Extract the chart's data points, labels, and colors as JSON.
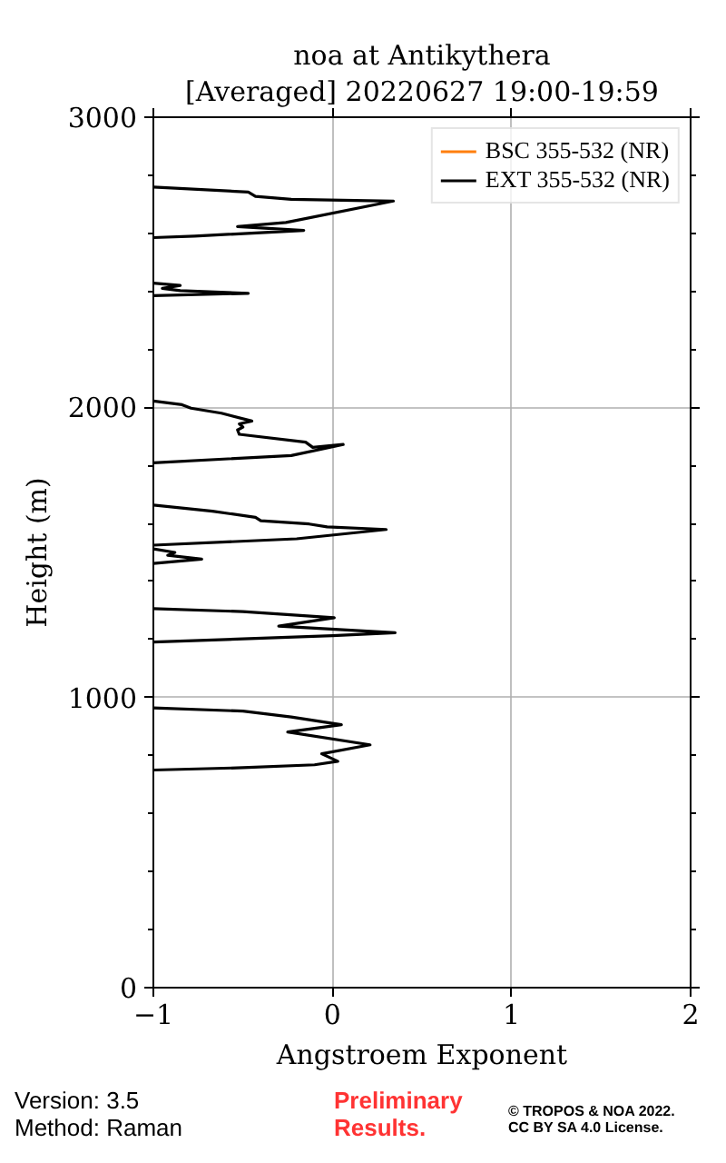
{
  "chart_data": {
    "type": "line",
    "title": "noa at Antikythera",
    "subtitle": "[Averaged] 20220627 19:00-19:59",
    "xlabel": "Angstroem Exponent",
    "ylabel": "Height (m)",
    "xlim": [
      -1,
      2
    ],
    "ylim": [
      0,
      3000
    ],
    "xticks": [
      {
        "value": -1,
        "label": "−1"
      },
      0,
      1,
      2
    ],
    "yticks": [
      0,
      {
        "value": 200,
        "label": null
      },
      {
        "value": 400,
        "label": null
      },
      {
        "value": 600,
        "label": null
      },
      {
        "value": 800,
        "label": null
      },
      1000,
      {
        "value": 1200,
        "label": null
      },
      {
        "value": 1400,
        "label": null
      },
      {
        "value": 1600,
        "label": null
      },
      {
        "value": 1800,
        "label": null
      },
      2000,
      {
        "value": 2200,
        "label": null
      },
      {
        "value": 2400,
        "label": null
      },
      {
        "value": 2600,
        "label": null
      },
      {
        "value": 2800,
        "label": null
      },
      3000
    ],
    "grid": true,
    "legend": "top right",
    "series": [
      {
        "name": "BSC 355-532 (NR)",
        "color": "#ff7f0e"
      },
      {
        "name": "EXT 355-532 (NR)",
        "color": "#000000",
        "x": [
          -1,
          -0.5,
          -0.1,
          0.03,
          -0.06,
          0.21,
          -0.25,
          0.05,
          -0.23,
          -0.5,
          -1,
          null,
          -1,
          -0.5,
          0.0,
          0.35,
          -0.3,
          0.01,
          -0.5,
          -1,
          null,
          -1,
          -0.73,
          -0.92,
          -0.88,
          -1,
          null,
          -1,
          -0.2,
          0.3,
          -0.03,
          -0.13,
          -0.4,
          -0.43,
          -0.67,
          -1,
          null,
          -1,
          -0.23,
          0.06,
          -0.11,
          -0.15,
          -0.52,
          -0.53,
          -0.5,
          -0.52,
          -0.45,
          -0.62,
          -0.79,
          -0.84,
          -1,
          null,
          -1,
          -0.47,
          -0.85,
          -0.95,
          -0.85,
          -1,
          null,
          -1,
          -0.77,
          -0.16,
          -0.53,
          -0.26,
          0.34,
          -0.23,
          -0.43,
          -0.47,
          -1
        ],
        "values": [
          750,
          758,
          768,
          780,
          806,
          837,
          881,
          906,
          933,
          953,
          964,
          null,
          1191,
          1202,
          1213,
          1223,
          1246,
          1275,
          1296,
          1306,
          null,
          1462,
          1477,
          1490,
          1500,
          1512,
          null,
          1525,
          1547,
          1579,
          1588,
          1598,
          1609,
          1621,
          1642,
          1663,
          null,
          1809,
          1834,
          1872,
          1862,
          1880,
          1907,
          1922,
          1932,
          1943,
          1953,
          1980,
          1997,
          2009,
          2022,
          null,
          2385,
          2393,
          2402,
          2410,
          2420,
          2428,
          null,
          2585,
          2590,
          2610,
          2623,
          2637,
          2711,
          2717,
          2727,
          2742,
          2759
        ]
      }
    ],
    "annotations": [
      "Version: 3.5",
      "Method: Raman",
      "Preliminary Results.",
      "© TROPOS & NOA 2022.",
      "CC BY SA 4.0 License."
    ]
  }
}
